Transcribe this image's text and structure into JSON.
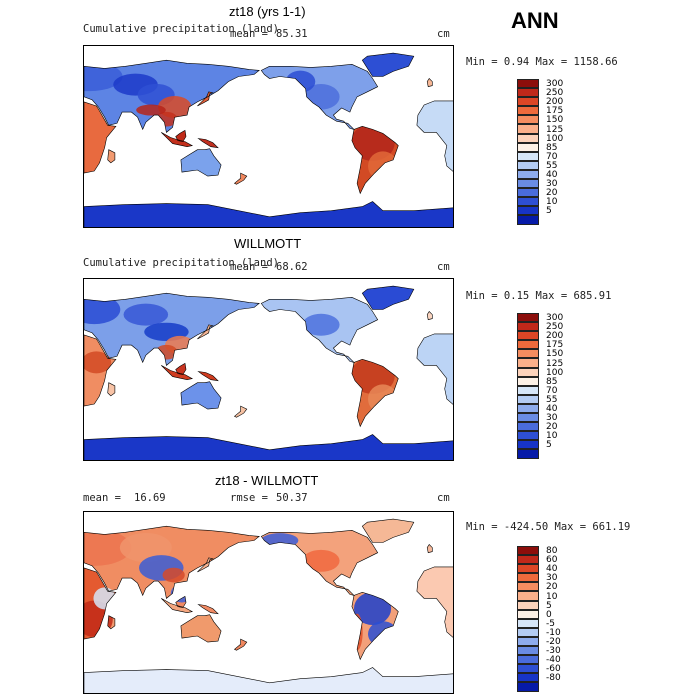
{
  "header": {
    "season": "ANN"
  },
  "panels": [
    {
      "title": "zt18 (yrs 1-1)",
      "variable": "Cumulative precipitation (land)",
      "stat1_label": "mean =",
      "stat1_value": "85.31",
      "stat2_label": "",
      "stat2_value": "",
      "units": "cm",
      "minmax": "Min =    0.94 Max = 1158.66",
      "levels": [
        "300",
        "250",
        "200",
        "175",
        "150",
        "125",
        "100",
        "85",
        "70",
        "55",
        "40",
        "30",
        "20",
        "10",
        "5"
      ],
      "colors": [
        "#8c0e0b",
        "#c0281a",
        "#dd4626",
        "#ee6a3c",
        "#f58d60",
        "#fbb08b",
        "#fdd3bb",
        "#fdf1e6",
        "#d6e6f8",
        "#b4ccf3",
        "#8eaced",
        "#6a8ce4",
        "#4a6cdc",
        "#2e4fd3",
        "#1734c6",
        "#061aa8"
      ],
      "mean_value": 85.31
    },
    {
      "title": "WILLMOTT",
      "variable": "Cumulative precipitation (land)",
      "stat1_label": "mean =",
      "stat1_value": "68.62",
      "stat2_label": "",
      "stat2_value": "",
      "units": "cm",
      "minmax": "Min =    0.15 Max =  685.91",
      "levels": [
        "300",
        "250",
        "200",
        "175",
        "150",
        "125",
        "100",
        "85",
        "70",
        "55",
        "40",
        "30",
        "20",
        "10",
        "5"
      ],
      "colors": [
        "#8c0e0b",
        "#c0281a",
        "#dd4626",
        "#ee6a3c",
        "#f58d60",
        "#fbb08b",
        "#fdd3bb",
        "#fdf1e6",
        "#d6e6f8",
        "#b4ccf3",
        "#8eaced",
        "#6a8ce4",
        "#4a6cdc",
        "#2e4fd3",
        "#1734c6",
        "#061aa8"
      ],
      "mean_value": 68.62
    },
    {
      "title": "zt18 - WILLMOTT",
      "variable": "",
      "stat1_label": "mean =",
      "stat1_value": "16.69",
      "stat2_label": "rmse =",
      "stat2_value": "50.37",
      "units": "cm",
      "minmax": "Min = -424.50 Max =  661.19",
      "levels": [
        "80",
        "60",
        "40",
        "30",
        "20",
        "10",
        "5",
        "0",
        "-5",
        "-10",
        "-20",
        "-30",
        "-40",
        "-60",
        "-80"
      ],
      "colors": [
        "#8c0e0b",
        "#c0281a",
        "#dd4626",
        "#ee6a3c",
        "#f58d60",
        "#fbb08b",
        "#fdd3bb",
        "#fdf1e6",
        "#d6e6f8",
        "#b4ccf3",
        "#8eaced",
        "#6a8ce4",
        "#4a6cdc",
        "#2e4fd3",
        "#1734c6",
        "#061aa8"
      ],
      "mean_value": 16.69
    }
  ]
}
